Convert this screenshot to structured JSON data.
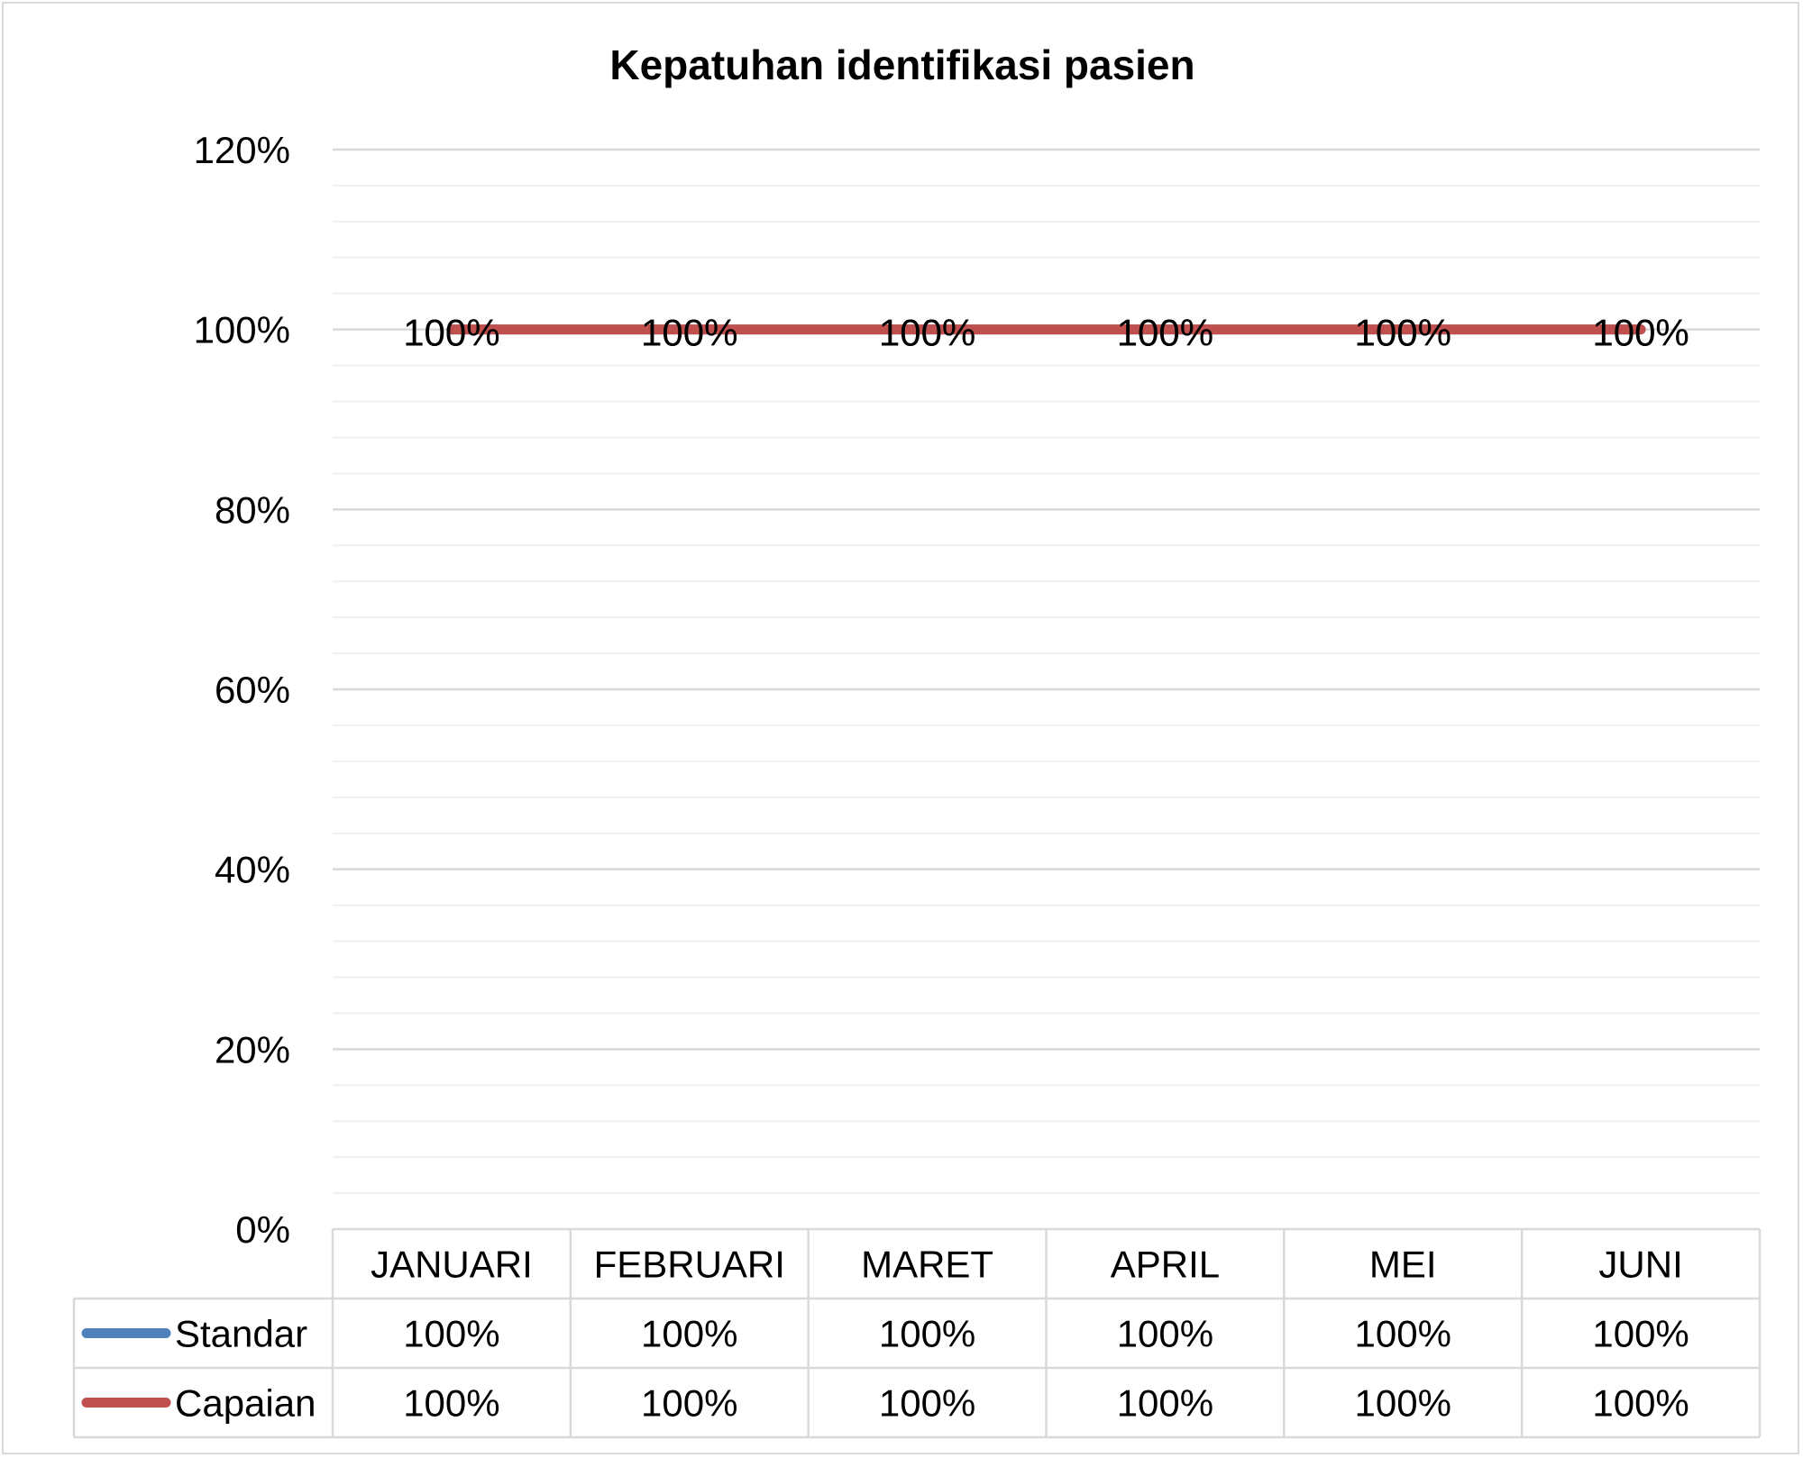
{
  "chart_data": {
    "type": "line",
    "title": "Kepatuhan identifikasi pasien",
    "categories": [
      "JANUARI",
      "FEBRUARI",
      "MARET",
      "APRIL",
      "MEI",
      "JUNI"
    ],
    "ylim": [
      0,
      1.2
    ],
    "y_ticks": [
      0,
      0.2,
      0.4,
      0.6,
      0.8,
      1.0,
      1.2
    ],
    "y_tick_labels": [
      "0%",
      "20%",
      "40%",
      "60%",
      "80%",
      "100%",
      "120%"
    ],
    "grid": true,
    "legend": "data-table",
    "series": [
      {
        "name": "Standar",
        "color": "#4f81bd",
        "values": [
          1.0,
          1.0,
          1.0,
          1.0,
          1.0,
          1.0
        ],
        "labels": [
          "100%",
          "100%",
          "100%",
          "100%",
          "100%",
          "100%"
        ]
      },
      {
        "name": "Capaian",
        "color": "#c0504d",
        "values": [
          1.0,
          1.0,
          1.0,
          1.0,
          1.0,
          1.0
        ],
        "labels": [
          "100%",
          "100%",
          "100%",
          "100%",
          "100%",
          "100%"
        ]
      }
    ]
  }
}
